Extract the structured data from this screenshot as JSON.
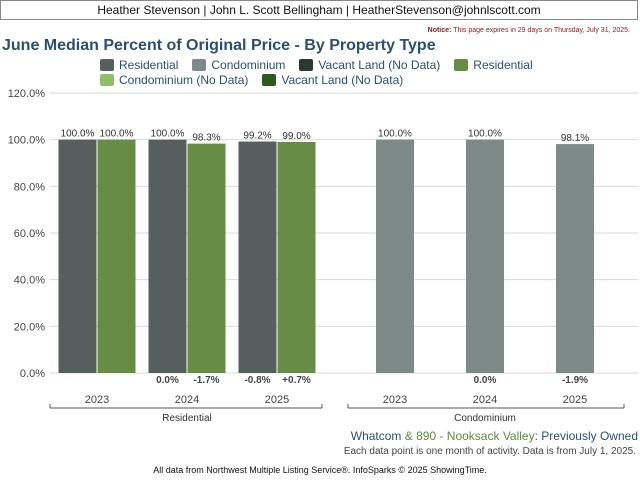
{
  "header": {
    "agent_line": "Heather Stevenson | John L. Scott Bellingham | HeatherStevenson@johnlscott.com",
    "notice_label": "Notice:",
    "notice_text": "This page expires in 29 days on Thursday, July 31, 2025."
  },
  "colors": {
    "residential": "#555f5d",
    "condominium": "#7d8a88",
    "vacant_land": "#2a3a30",
    "residential_green": "#678c44",
    "condominium_no_data": "#8fbf69",
    "vacant_land_no_data": "#2f5a1e",
    "title": "#2b4f71"
  },
  "legend": [
    {
      "label": "Residential",
      "color": "#555f5d"
    },
    {
      "label": "Condominium",
      "color": "#7d8a88"
    },
    {
      "label": "Vacant Land (No Data)",
      "color": "#2a3a30"
    },
    {
      "label": "Residential",
      "color": "#678c44"
    },
    {
      "label": "Condominium (No Data)",
      "color": "#8fbf69"
    },
    {
      "label": "Vacant Land (No Data)",
      "color": "#2f5a1e"
    }
  ],
  "chart_data": {
    "type": "bar",
    "title": "June Median Percent of Original Price - By Property Type",
    "ylim": [
      0,
      120
    ],
    "y_ticks": [
      "0.0%",
      "20.0%",
      "40.0%",
      "60.0%",
      "80.0%",
      "100.0%",
      "120.0%"
    ],
    "grid": true,
    "legend_position": "top",
    "groups": [
      {
        "name": "Residential",
        "categories": [
          "2023",
          "2024",
          "2025"
        ],
        "bars": [
          {
            "values": [
              100.0,
              100.0,
              99.2
            ],
            "labels": [
              "100.0%",
              "100.0%",
              "99.2%"
            ],
            "color": "#555f5d"
          },
          {
            "values": [
              100.0,
              98.3,
              99.0
            ],
            "labels": [
              "100.0%",
              "98.3%",
              "99.0%"
            ],
            "color": "#678c44"
          }
        ],
        "changes": [
          [
            "",
            ""
          ],
          [
            "0.0%",
            "-1.7%"
          ],
          [
            "-0.8%",
            "+0.7%"
          ]
        ]
      },
      {
        "name": "Condominium",
        "categories": [
          "2023",
          "2024",
          "2025"
        ],
        "bars": [
          {
            "values": [
              100.0,
              100.0,
              98.1
            ],
            "labels": [
              "100.0%",
              "100.0%",
              "98.1%"
            ],
            "color": "#7d8a88"
          }
        ],
        "changes": [
          [
            ""
          ],
          [
            "0.0%"
          ],
          [
            "-1.9%"
          ]
        ]
      }
    ]
  },
  "area": {
    "part1": "Whatcom",
    "part2": " & 890 - Nooksack Valley",
    "part3": ": Previously Owned"
  },
  "note": "Each data point is one month of activity. Data is from July 1, 2025.",
  "footer": "All data from Northwest Multiple Listing Service®. InfoSparks © 2025 ShowingTime."
}
